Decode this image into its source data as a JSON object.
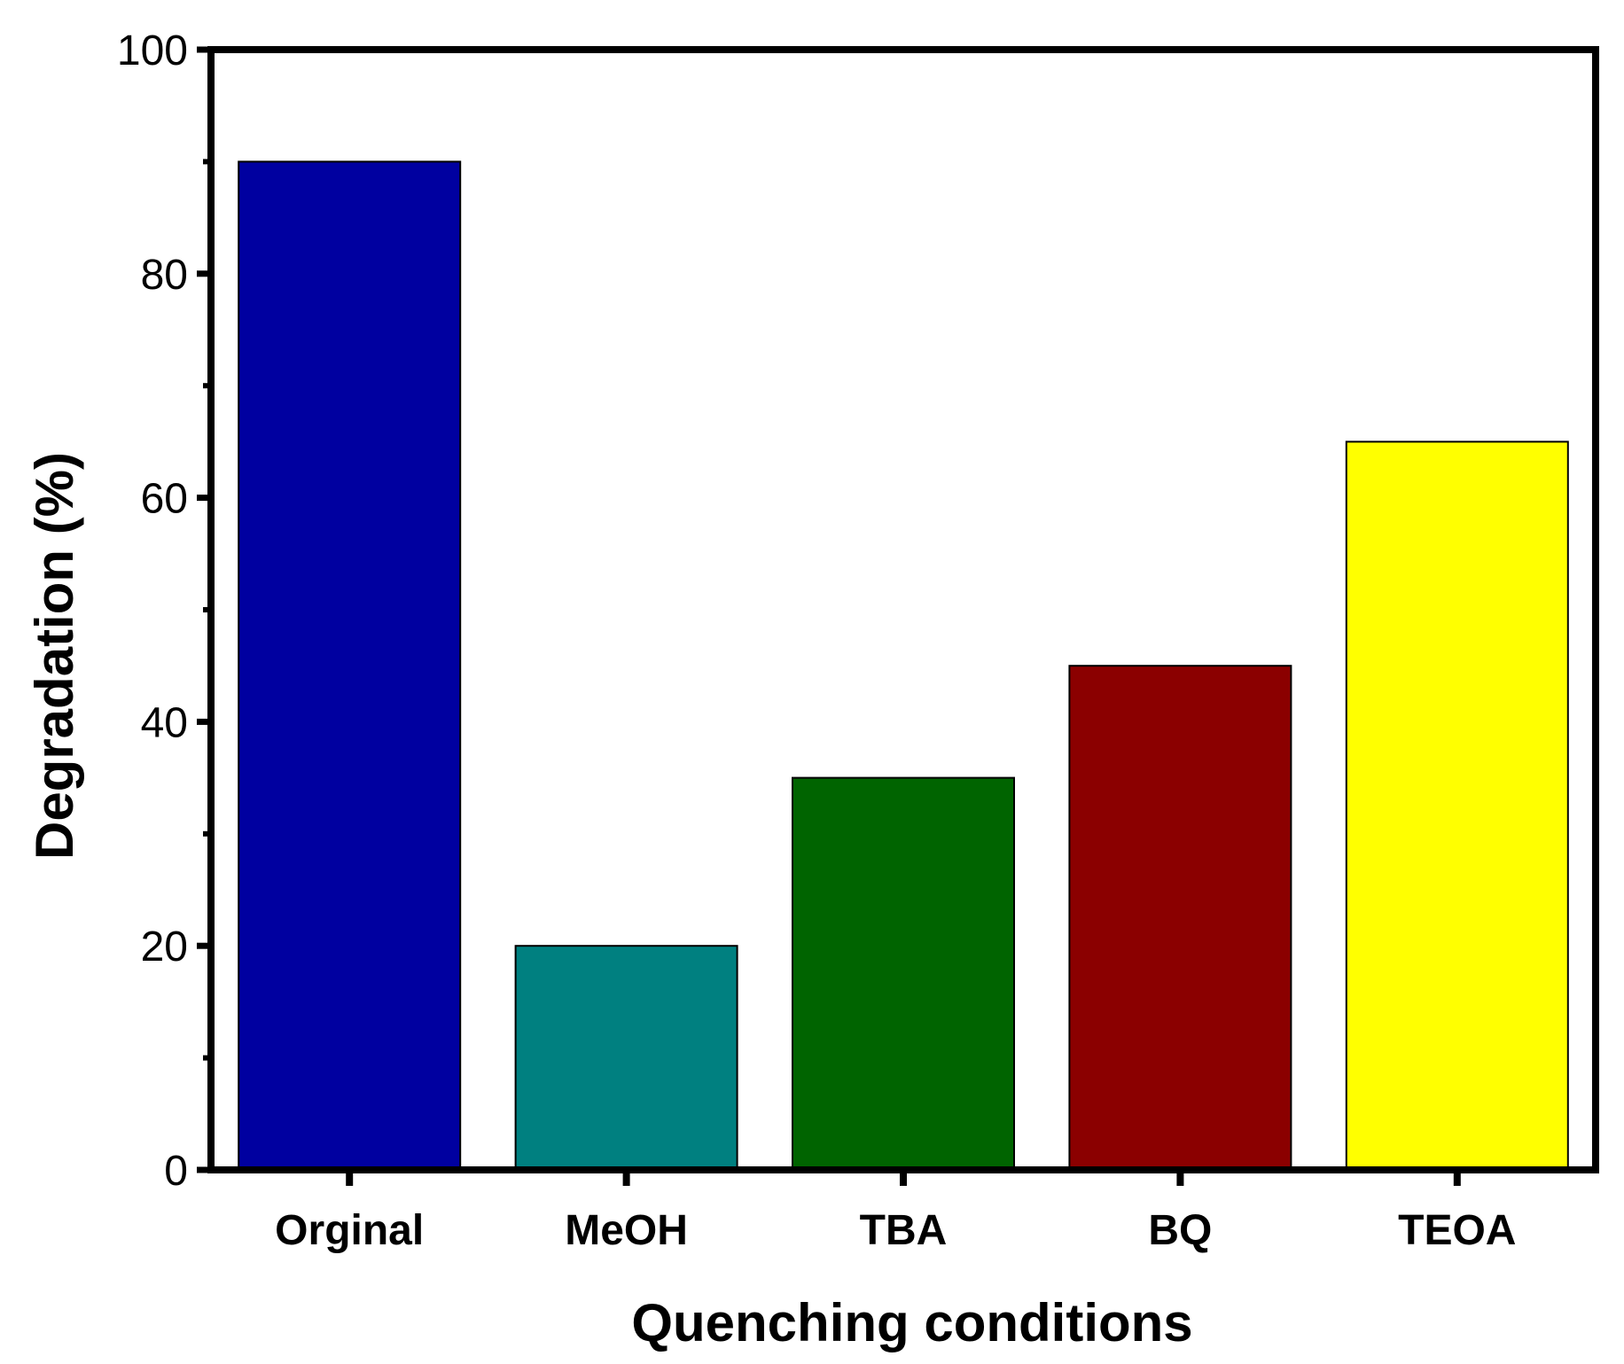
{
  "chart_data": {
    "type": "bar",
    "categories": [
      "Orginal",
      "MeOH",
      "TBA",
      "BQ",
      "TEOA"
    ],
    "values": [
      90,
      20,
      35,
      45,
      65
    ],
    "colors": [
      "#0000a0",
      "#008080",
      "#006400",
      "#8b0000",
      "#ffff00"
    ],
    "xlabel": "Quenching conditions",
    "ylabel": "Degradation (%)",
    "ylim": [
      0,
      100
    ],
    "y_ticks": [
      0,
      20,
      40,
      60,
      80,
      100
    ],
    "grid": false,
    "legend": "none"
  }
}
